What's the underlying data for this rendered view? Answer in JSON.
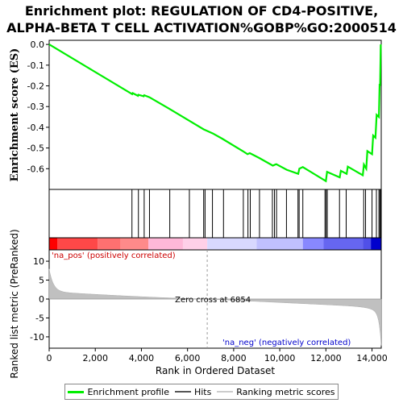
{
  "title_line1": "Enrichment plot: REGULATION OF CD4-POSITIVE,",
  "title_line2": "ALPHA-BETA T CELL ACTIVATION%GOBP%GO:2000514",
  "colors": {
    "profile": "#00ee00",
    "hits": "#000000",
    "metric_fill": "#c0c0c0",
    "pos_text": "#cc0000",
    "neg_text": "#0000cc"
  },
  "chart_data": {
    "type": "line",
    "ylabel_top": "Enrichment score (ES)",
    "ylabel_bottom": "Ranked list metric (PreRanked)",
    "xlabel": "Rank in Ordered Dataset",
    "xlim": [
      0,
      14400
    ],
    "ylim_top": [
      -0.7,
      0.02
    ],
    "ylim_bottom": [
      -13,
      13
    ],
    "x_ticks": [
      0,
      2000,
      4000,
      6000,
      8000,
      10000,
      12000,
      14000
    ],
    "x_tick_labels": [
      "0",
      "2,000",
      "4,000",
      "6,000",
      "8,000",
      "10,000",
      "12,000",
      "14,000"
    ],
    "y_ticks_top": [
      0.0,
      -0.1,
      -0.2,
      -0.3,
      -0.4,
      -0.5,
      -0.6
    ],
    "y_tick_labels_top": [
      "0.0",
      "-0.1",
      "-0.2",
      "-0.3",
      "-0.4",
      "-0.5",
      "-0.6"
    ],
    "y_ticks_bottom": [
      10,
      5,
      0,
      -5,
      -10
    ],
    "y_tick_labels_bottom": [
      "10",
      "5",
      "0",
      "-5",
      "-10"
    ],
    "enrichment_profile": {
      "x": [
        0,
        3600,
        3620,
        3850,
        3870,
        4100,
        4120,
        4350,
        5200,
        6100,
        6700,
        7100,
        7500,
        8400,
        8600,
        8700,
        9100,
        9700,
        9800,
        9850,
        10300,
        10800,
        10850,
        11000,
        12000,
        12050,
        12600,
        12650,
        12900,
        12950,
        13600,
        13650,
        13750,
        13800,
        14000,
        14050,
        14150,
        14200,
        14300,
        14330,
        14350,
        14380
      ],
      "y": [
        0.0,
        -0.24,
        -0.235,
        -0.248,
        -0.243,
        -0.25,
        -0.245,
        -0.255,
        -0.31,
        -0.37,
        -0.41,
        -0.43,
        -0.455,
        -0.515,
        -0.53,
        -0.525,
        -0.548,
        -0.585,
        -0.58,
        -0.578,
        -0.605,
        -0.625,
        -0.6,
        -0.592,
        -0.66,
        -0.615,
        -0.642,
        -0.61,
        -0.625,
        -0.59,
        -0.632,
        -0.58,
        -0.6,
        -0.515,
        -0.53,
        -0.44,
        -0.45,
        -0.34,
        -0.35,
        -0.19,
        -0.2,
        0.0
      ]
    },
    "hits": [
      3590,
      3870,
      4120,
      4350,
      5230,
      6080,
      6700,
      6760,
      7080,
      7560,
      8420,
      8620,
      8720,
      9120,
      9680,
      9770,
      9860,
      10290,
      10790,
      10840,
      11000,
      11960,
      12010,
      12060,
      12590,
      12880,
      13640,
      13720,
      14000,
      14190,
      14300,
      14340,
      14380
    ],
    "zero_cross": 6854,
    "zero_cross_label": "Zero cross at 6854",
    "pos_label": "'na_pos' (positively correlated)",
    "neg_label": "'na_neg' (negatively correlated)",
    "heat_bands": [
      {
        "from": 0,
        "to": 350,
        "color": "#ff0000"
      },
      {
        "from": 350,
        "to": 2100,
        "color": "#ff4848"
      },
      {
        "from": 2100,
        "to": 3100,
        "color": "#ff7070"
      },
      {
        "from": 3100,
        "to": 4300,
        "color": "#ff8a8a"
      },
      {
        "from": 4300,
        "to": 5800,
        "color": "#ffb8d8"
      },
      {
        "from": 5800,
        "to": 6854,
        "color": "#ffd0e8"
      },
      {
        "from": 6854,
        "to": 9000,
        "color": "#d8d8ff"
      },
      {
        "from": 9000,
        "to": 11000,
        "color": "#c0c0ff"
      },
      {
        "from": 11000,
        "to": 11900,
        "color": "#8888ff"
      },
      {
        "from": 11900,
        "to": 13600,
        "color": "#6666f0"
      },
      {
        "from": 13600,
        "to": 13950,
        "color": "#5050e8"
      },
      {
        "from": 13950,
        "to": 14400,
        "color": "#0000cc"
      }
    ]
  },
  "legend": {
    "profile_label": "Enrichment profile",
    "hits_label": "Hits",
    "metric_label": "Ranking metric scores"
  }
}
